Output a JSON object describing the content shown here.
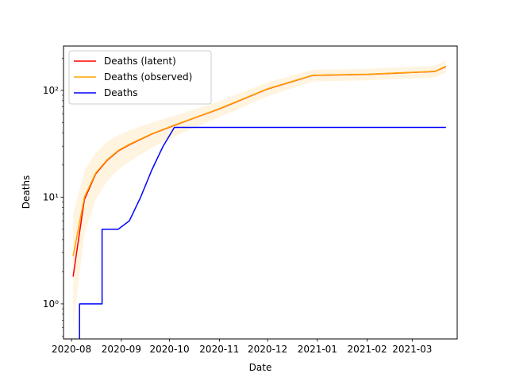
{
  "chart_data": {
    "type": "line",
    "title": "",
    "xlabel": "Date",
    "ylabel": "Deaths",
    "y_scale": "log",
    "ylim": [
      0.47,
      260
    ],
    "xlim": [
      "2020-07-27",
      "2021-03-29"
    ],
    "grid": false,
    "legend_position": "top-left",
    "x_ticks": [
      "2020-08-01",
      "2020-09-01",
      "2020-10-01",
      "2020-11-01",
      "2020-12-01",
      "2021-01-01",
      "2021-02-01",
      "2021-03-01"
    ],
    "x_tick_labels": [
      "2020-08",
      "2020-09",
      "2020-10",
      "2020-11",
      "2020-12",
      "2021-01",
      "2021-02",
      "2021-03"
    ],
    "y_ticks": [
      1,
      10,
      100
    ],
    "y_tick_labels": [
      "10⁰",
      "10¹",
      "10²"
    ],
    "series": [
      {
        "name": "Deaths (latent)",
        "color": "#ff0000",
        "x": [
          "2020-08-02",
          "2020-08-09",
          "2020-08-16",
          "2020-08-23",
          "2020-08-30",
          "2020-09-06",
          "2020-09-20",
          "2020-10-04",
          "2020-11-01",
          "2020-12-01",
          "2020-12-29",
          "2021-02-01",
          "2021-03-01",
          "2021-03-15",
          "2021-03-22"
        ],
        "y": [
          1.8,
          9.5,
          16.5,
          22,
          27,
          31,
          39,
          47,
          67,
          103,
          138,
          141,
          147,
          150,
          167
        ]
      },
      {
        "name": "Deaths (observed)",
        "color": "#ffa500",
        "x": [
          "2020-08-02",
          "2020-08-09",
          "2020-08-16",
          "2020-08-23",
          "2020-08-30",
          "2020-09-06",
          "2020-09-20",
          "2020-10-04",
          "2020-11-01",
          "2020-12-01",
          "2020-12-29",
          "2021-02-01",
          "2021-03-01",
          "2021-03-15",
          "2021-03-22"
        ],
        "y": [
          2.8,
          10,
          16.8,
          22.3,
          27.3,
          31.3,
          39.3,
          47.3,
          67.5,
          103.5,
          138.5,
          141.5,
          147.5,
          150.5,
          168
        ],
        "band_lower": [
          0.6,
          4.5,
          9.5,
          14,
          18,
          21.5,
          29,
          37,
          56,
          88,
          121,
          124,
          129,
          132,
          146
        ],
        "band_upper": [
          7,
          17.5,
          26,
          33,
          38,
          42,
          50,
          58,
          79,
          119,
          156,
          159,
          166,
          170,
          192
        ]
      },
      {
        "name": "Deaths",
        "color": "#0000ff",
        "x": [
          "2020-08-06",
          "2020-08-06",
          "2020-08-13",
          "2020-08-13",
          "2020-08-20",
          "2020-08-20",
          "2020-08-27",
          "2020-08-30",
          "2020-09-06",
          "2020-09-13",
          "2020-09-20",
          "2020-09-27",
          "2020-10-04",
          "2021-03-22"
        ],
        "y": [
          0.3,
          1,
          1,
          1,
          1,
          5,
          5,
          5,
          6,
          10,
          18,
          30,
          45,
          45
        ]
      }
    ]
  }
}
